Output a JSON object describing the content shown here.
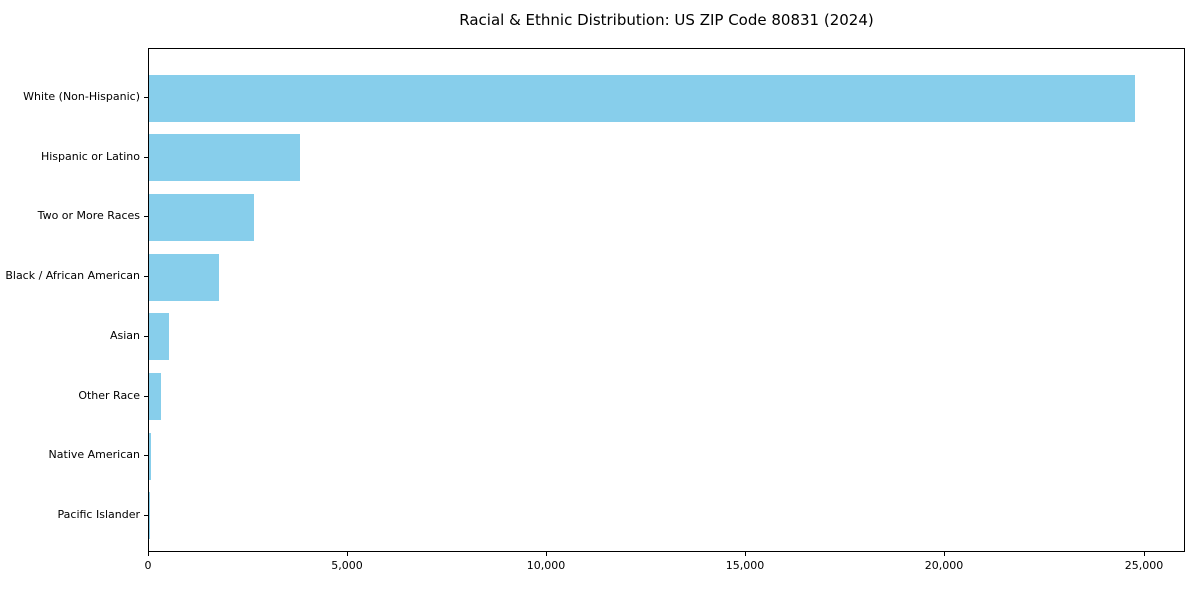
{
  "chart_data": {
    "type": "bar",
    "orientation": "horizontal",
    "title": "Racial & Ethnic Distribution: US ZIP Code 80831 (2024)",
    "categories": [
      "White (Non-Hispanic)",
      "Hispanic or Latino",
      "Two or More Races",
      "Black / African American",
      "Asian",
      "Other Race",
      "Native American",
      "Pacific Islander"
    ],
    "values": [
      24800,
      3800,
      2640,
      1760,
      510,
      300,
      40,
      10
    ],
    "xlabel": "",
    "ylabel": "",
    "xlim": [
      0,
      26040
    ],
    "x_ticks": [
      0,
      5000,
      10000,
      15000,
      20000,
      25000
    ],
    "x_tick_labels": [
      "0",
      "5,000",
      "10,000",
      "15,000",
      "20,000",
      "25,000"
    ],
    "bar_color": "#87CEEB",
    "background_color": "#ffffff",
    "axis_color": "#000000",
    "grid": false,
    "legend": "none"
  }
}
